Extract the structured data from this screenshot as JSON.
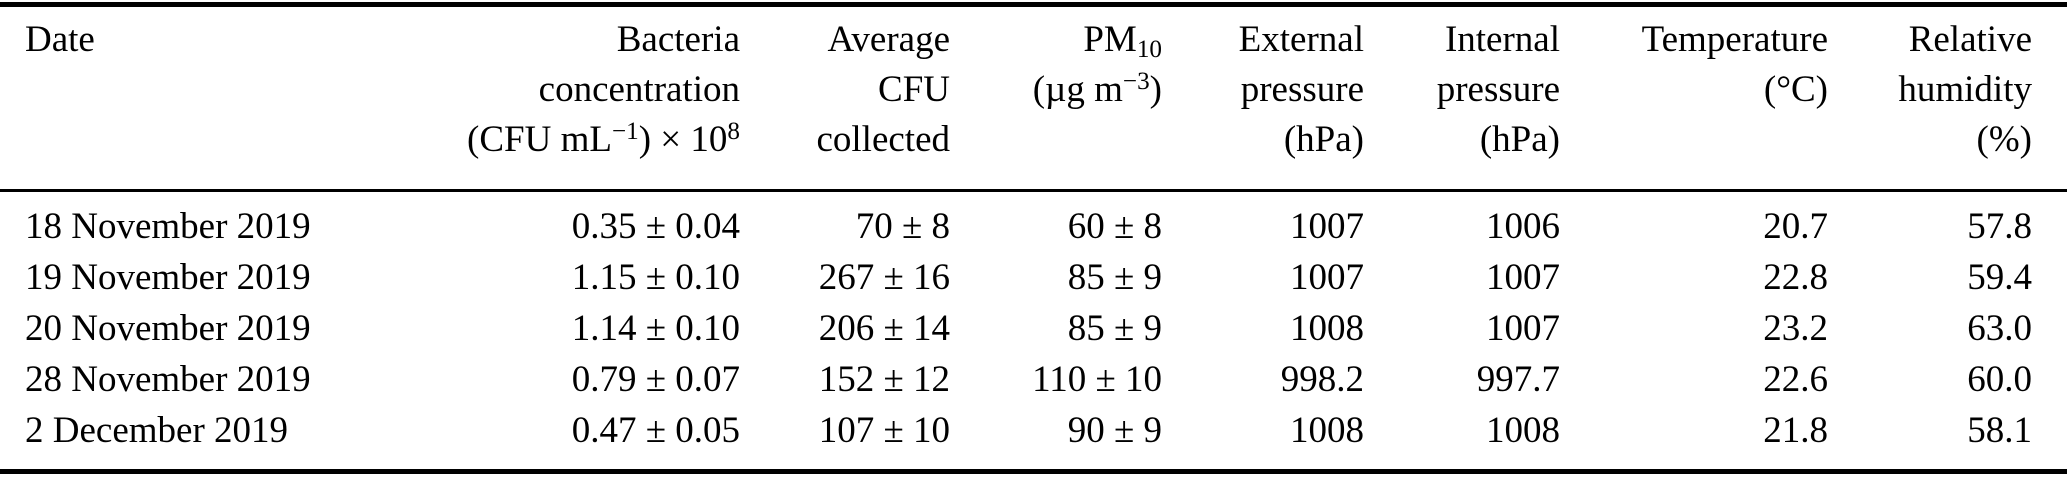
{
  "table": {
    "header": {
      "date": "Date",
      "bacteria_line1": "Bacteria",
      "bacteria_line2": "concentration",
      "bacteria_unit_prefix": "(CFU mL",
      "bacteria_unit_sup1": "−1",
      "bacteria_unit_mid": ") × 10",
      "bacteria_unit_sup2": "8",
      "cfu_line1": "Average",
      "cfu_line2": "CFU",
      "cfu_line3": "collected",
      "pm_base": "PM",
      "pm_sub": "10",
      "pm_unit_prefix": "(µg m",
      "pm_unit_sup": "−3",
      "pm_unit_suffix": ")",
      "ext_line1": "External",
      "ext_line2": "pressure",
      "ext_line3": "(hPa)",
      "int_line1": "Internal",
      "int_line2": "pressure",
      "int_line3": "(hPa)",
      "temp_line1": "Temperature",
      "temp_line2": "(°C)",
      "rh_line1": "Relative",
      "rh_line2": "humidity",
      "rh_line3": "(%)"
    },
    "rows": [
      {
        "date": "18 November 2019",
        "bacteria": "0.35 ± 0.04",
        "cfu": "70 ± 8",
        "pm": "60 ± 8",
        "ext": "1007",
        "int": "1006",
        "temp": "20.7",
        "rh": "57.8"
      },
      {
        "date": "19 November 2019",
        "bacteria": "1.15 ± 0.10",
        "cfu": "267 ± 16",
        "pm": "85 ± 9",
        "ext": "1007",
        "int": "1007",
        "temp": "22.8",
        "rh": "59.4"
      },
      {
        "date": "20 November 2019",
        "bacteria": "1.14 ± 0.10",
        "cfu": "206 ± 14",
        "pm": "85 ± 9",
        "ext": "1008",
        "int": "1007",
        "temp": "23.2",
        "rh": "63.0"
      },
      {
        "date": "28 November 2019",
        "bacteria": "0.79 ± 0.07",
        "cfu": "152 ± 12",
        "pm": "110 ± 10",
        "ext": "998.2",
        "int": "997.7",
        "temp": "22.6",
        "rh": "60.0"
      },
      {
        "date": "2 December 2019",
        "bacteria": "0.47 ± 0.05",
        "cfu": "107 ± 10",
        "pm": "90 ± 9",
        "ext": "1008",
        "int": "1008",
        "temp": "21.8",
        "rh": "58.1"
      }
    ]
  },
  "colors": {
    "text": "#000000",
    "background": "#ffffff",
    "rule": "#000000"
  }
}
